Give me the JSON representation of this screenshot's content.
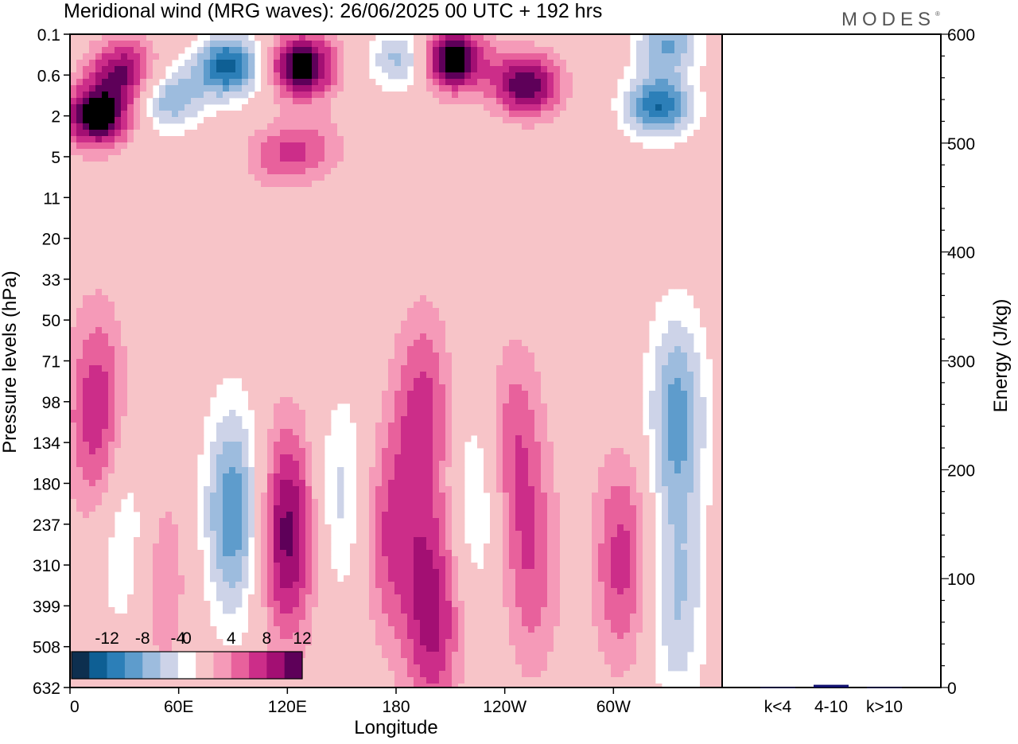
{
  "title": "Meridional wind (MRG waves):  26/06/2025  00 UTC  + 192 hrs",
  "logo": "MODES",
  "logo_mark": "®",
  "colors": {
    "negative": [
      "#0d2f4f",
      "#0e5f94",
      "#2c7fb8",
      "#5e9ccc",
      "#9dbcde",
      "#cdd3e8"
    ],
    "positive": [
      "#f7c4c8",
      "#f59ab8",
      "#e8619c",
      "#cc2d89",
      "#a30f73",
      "#5e0059"
    ],
    "zero": "#ffffff",
    "energy_bar": "#10106e"
  },
  "chart_data": [
    {
      "type": "heatmap",
      "variable": "Meridional wind (MRG waves)",
      "xlabel": "Longitude",
      "ylabel": "Pressure levels (hPa)",
      "x_ticks": [
        "0",
        "60E",
        "120E",
        "180",
        "120W",
        "60W"
      ],
      "x_range_deg": [
        0,
        360
      ],
      "y_ticks": [
        "0.1",
        "0.6",
        "2",
        "5",
        "11",
        "20",
        "33",
        "50",
        "71",
        "98",
        "134",
        "180",
        "237",
        "310",
        "399",
        "508",
        "632"
      ],
      "y_scale": "categorical, evenly spaced, top 0.1 to bottom 632",
      "colorbar_labels": [
        "-12",
        "-8",
        "-4",
        "0",
        "4",
        "8",
        "12"
      ],
      "colorbar_levels": [
        -14,
        -12,
        -10,
        -8,
        -6,
        -4,
        -2,
        2,
        4,
        6,
        8,
        10,
        12,
        14
      ],
      "colorbar_placement": "bottom-left inside plot",
      "features": [
        {
          "lon": 15,
          "level": 2,
          "value": 14
        },
        {
          "lon": 30,
          "level": 0.5,
          "value": 10
        },
        {
          "lon": 88,
          "level": 0.4,
          "value": -13
        },
        {
          "lon": 55,
          "level": 1.2,
          "value": -8
        },
        {
          "lon": 128,
          "level": 0.4,
          "value": 14
        },
        {
          "lon": 135,
          "level": 4,
          "value": 4
        },
        {
          "lon": 185,
          "level": 0.3,
          "value": -8
        },
        {
          "lon": 210,
          "level": 0.3,
          "value": 15
        },
        {
          "lon": 252,
          "level": 0.8,
          "value": 12
        },
        {
          "lon": 325,
          "level": 1.5,
          "value": -12
        },
        {
          "lon": 330,
          "level": 0.15,
          "value": -8
        },
        {
          "lon": 115,
          "level": 5,
          "value": 5
        },
        {
          "lon": 120,
          "level": 250,
          "value": 11
        },
        {
          "lon": 90,
          "level": 220,
          "value": -10
        },
        {
          "lon": 15,
          "level": 110,
          "value": 8
        },
        {
          "lon": 150,
          "level": 200,
          "value": -5
        },
        {
          "lon": 175,
          "level": 250,
          "value": 6
        },
        {
          "lon": 200,
          "level": 420,
          "value": 9
        },
        {
          "lon": 195,
          "level": 110,
          "value": 7
        },
        {
          "lon": 225,
          "level": 200,
          "value": -5
        },
        {
          "lon": 245,
          "level": 140,
          "value": 6
        },
        {
          "lon": 255,
          "level": 330,
          "value": 5
        },
        {
          "lon": 305,
          "level": 300,
          "value": 7
        },
        {
          "lon": 335,
          "level": 110,
          "value": -9
        },
        {
          "lon": 335,
          "level": 400,
          "value": -6
        },
        {
          "lon": 30,
          "level": 250,
          "value": -5
        },
        {
          "lon": 50,
          "level": 330,
          "value": 4
        }
      ]
    },
    {
      "type": "bar",
      "ylabel": "Energy (J/kg)",
      "ylim": [
        0,
        600
      ],
      "y_ticks": [
        "0",
        "100",
        "200",
        "300",
        "400",
        "500",
        "600"
      ],
      "categories": [
        "k<4",
        "4-10",
        "k>10"
      ],
      "values": [
        0.3,
        2.5,
        0.3
      ]
    }
  ]
}
